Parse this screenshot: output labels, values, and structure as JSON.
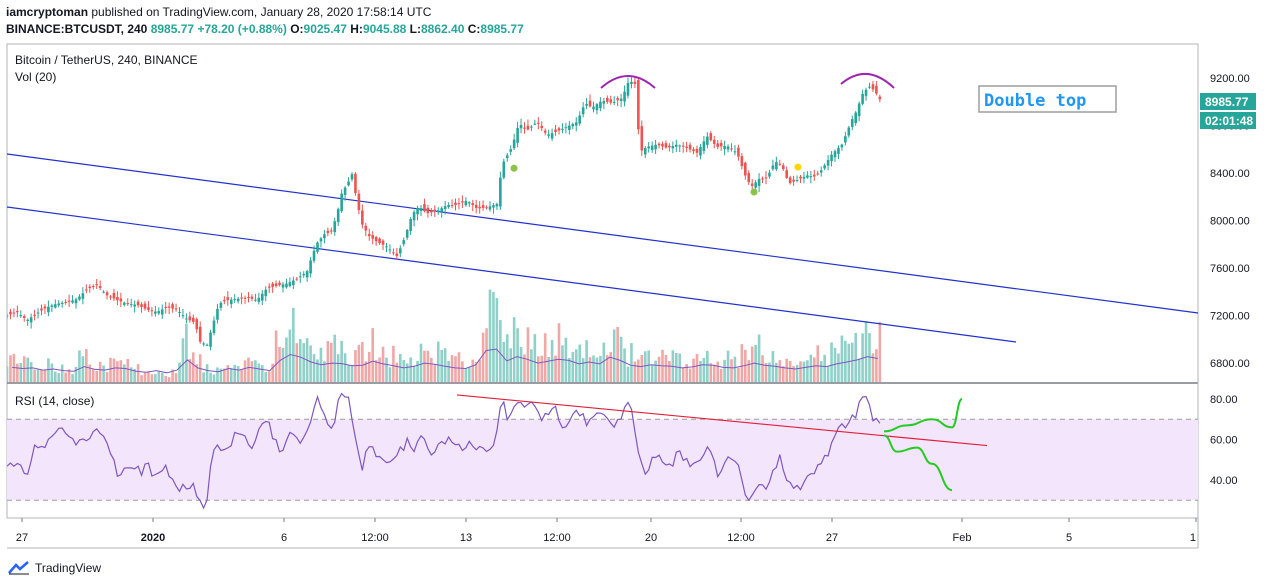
{
  "header": {
    "author": "iamcryptoman",
    "published_text": "published on TradingView.com, January 28, 2020 17:58:14 UTC",
    "symbol": "BINANCE:BTCUSDT, 240",
    "last": "8985.77",
    "change": "+78.20 (+0.88%)",
    "open_label": "O:",
    "open": "9025.47",
    "high_label": "H:",
    "high": "9045.88",
    "low_label": "L:",
    "low": "8862.40",
    "close_label": "C:",
    "close": "8985.77"
  },
  "legend": {
    "main": "Bitcoin / TetherUS, 240, BINANCE",
    "volume": "Vol (20)",
    "rsi": "RSI (14, close)"
  },
  "annotation": {
    "text": "Double top"
  },
  "price_tag": {
    "price": "8985.77",
    "countdown": "02:01:48"
  },
  "footer": {
    "brand": "TradingView"
  },
  "colors": {
    "up": "#26a69a",
    "down": "#ef5350",
    "channel": "#2233cc",
    "rsi_line": "#7e57c2",
    "rsi_band": "#f3e5fb",
    "trend_red": "#e0213a",
    "projection": "#22cc22",
    "double_top_arc": "#9c27b0",
    "annotation": "#2196f3"
  },
  "chart_data": [
    {
      "type": "candlestick",
      "series_name": "Bitcoin / TetherUS, 240, BINANCE",
      "y_axis": {
        "ticks": [
          "6800.00",
          "7200.00",
          "7600.00",
          "8000.00",
          "8400.00",
          "8800.00",
          "9200.00"
        ],
        "range": [
          6650,
          9450
        ]
      },
      "x_axis": {
        "ticks": [
          "27",
          "2020",
          "6",
          "12:00",
          "13",
          "12:00",
          "20",
          "12:00",
          "27",
          "Feb",
          "5",
          "1"
        ]
      },
      "close_path": [
        [
          0,
          7200
        ],
        [
          10,
          7230
        ],
        [
          20,
          7160
        ],
        [
          30,
          7220
        ],
        [
          40,
          7270
        ],
        [
          50,
          7300
        ],
        [
          60,
          7310
        ],
        [
          70,
          7340
        ],
        [
          80,
          7420
        ],
        [
          90,
          7460
        ],
        [
          100,
          7370
        ],
        [
          110,
          7330
        ],
        [
          120,
          7300
        ],
        [
          130,
          7290
        ],
        [
          140,
          7250
        ],
        [
          150,
          7230
        ],
        [
          160,
          7270
        ],
        [
          170,
          7250
        ],
        [
          180,
          7170
        ],
        [
          188,
          7140
        ],
        [
          193,
          6980
        ],
        [
          200,
          6950
        ],
        [
          205,
          7100
        ],
        [
          212,
          7300
        ],
        [
          220,
          7330
        ],
        [
          230,
          7340
        ],
        [
          240,
          7350
        ],
        [
          250,
          7330
        ],
        [
          260,
          7430
        ],
        [
          270,
          7450
        ],
        [
          280,
          7470
        ],
        [
          290,
          7510
        ],
        [
          300,
          7570
        ],
        [
          305,
          7700
        ],
        [
          310,
          7810
        ],
        [
          318,
          7890
        ],
        [
          324,
          7900
        ],
        [
          330,
          8050
        ],
        [
          335,
          8240
        ],
        [
          340,
          8300
        ],
        [
          345,
          8390
        ],
        [
          350,
          8160
        ],
        [
          355,
          7970
        ],
        [
          362,
          7870
        ],
        [
          370,
          7820
        ],
        [
          380,
          7780
        ],
        [
          390,
          7700
        ],
        [
          398,
          7860
        ],
        [
          405,
          8050
        ],
        [
          412,
          8120
        ],
        [
          420,
          8060
        ],
        [
          430,
          8080
        ],
        [
          440,
          8130
        ],
        [
          450,
          8130
        ],
        [
          460,
          8170
        ],
        [
          470,
          8100
        ],
        [
          480,
          8110
        ],
        [
          490,
          8140
        ],
        [
          495,
          8470
        ],
        [
          505,
          8620
        ],
        [
          512,
          8820
        ],
        [
          520,
          8760
        ],
        [
          530,
          8830
        ],
        [
          540,
          8720
        ],
        [
          550,
          8750
        ],
        [
          560,
          8790
        ],
        [
          570,
          8830
        ],
        [
          578,
          8990
        ],
        [
          585,
          8950
        ],
        [
          595,
          9010
        ],
        [
          605,
          8990
        ],
        [
          615,
          9030
        ],
        [
          622,
          9180
        ],
        [
          628,
          9150
        ],
        [
          633,
          8580
        ],
        [
          640,
          8620
        ],
        [
          650,
          8640
        ],
        [
          660,
          8610
        ],
        [
          670,
          8640
        ],
        [
          680,
          8610
        ],
        [
          690,
          8570
        ],
        [
          700,
          8710
        ],
        [
          710,
          8620
        ],
        [
          720,
          8630
        ],
        [
          730,
          8570
        ],
        [
          740,
          8340
        ],
        [
          745,
          8290
        ],
        [
          752,
          8350
        ],
        [
          760,
          8360
        ],
        [
          768,
          8500
        ],
        [
          775,
          8460
        ],
        [
          782,
          8310
        ],
        [
          790,
          8340
        ],
        [
          800,
          8380
        ],
        [
          808,
          8370
        ],
        [
          815,
          8430
        ],
        [
          825,
          8560
        ],
        [
          835,
          8640
        ],
        [
          845,
          8850
        ],
        [
          850,
          8930
        ],
        [
          855,
          9060
        ],
        [
          862,
          9130
        ],
        [
          868,
          9090
        ],
        [
          872,
          9030
        ],
        [
          876,
          8986
        ]
      ],
      "markers": [
        {
          "bar": 507,
          "price": 8440,
          "color": "#8bc34a"
        },
        {
          "bar": 747,
          "price": 8240,
          "color": "#8bc34a"
        },
        {
          "bar": 791,
          "price": 8450,
          "color": "#ffd600"
        }
      ]
    },
    {
      "type": "bar",
      "series_name": "Vol (20)",
      "relative_heights": [
        0.32,
        0.28,
        0.3,
        0.22,
        0.26,
        0.2,
        0.18,
        0.35,
        0.25,
        0.22,
        0.3,
        0.28,
        0.18,
        0.14,
        0.2,
        0.12,
        0.22,
        0.6,
        0.3,
        0.2,
        0.16,
        0.28,
        0.22,
        0.32,
        0.26,
        0.2,
        0.58,
        0.8,
        0.7,
        0.52,
        0.42,
        0.48,
        0.46,
        0.38,
        0.4,
        0.55,
        0.45,
        0.38,
        0.3,
        0.36,
        0.48,
        0.44,
        0.36,
        0.3,
        0.28,
        0.42,
        0.95,
        1.0,
        0.56,
        0.72,
        0.62,
        0.48,
        0.55,
        0.62,
        0.58,
        0.45,
        0.52,
        0.45,
        0.7,
        0.58,
        0.4,
        0.35,
        0.42,
        0.38,
        0.36,
        0.3,
        0.34,
        0.42,
        0.4,
        0.32,
        0.3,
        0.38,
        0.48,
        0.4,
        0.36,
        0.3,
        0.26,
        0.32,
        0.38,
        0.35,
        0.45,
        0.52,
        0.6,
        0.72,
        0.65
      ]
    },
    {
      "type": "line",
      "series_name": "RSI (14, close)",
      "y_axis": {
        "ticks": [
          "40.00",
          "60.00",
          "80.00"
        ],
        "range": [
          20,
          88
        ]
      },
      "band": [
        30,
        70
      ],
      "values_path": [
        [
          0,
          45
        ],
        [
          10,
          52
        ],
        [
          20,
          40
        ],
        [
          30,
          58
        ],
        [
          40,
          60
        ],
        [
          50,
          62
        ],
        [
          60,
          65
        ],
        [
          70,
          60
        ],
        [
          80,
          58
        ],
        [
          90,
          68
        ],
        [
          100,
          55
        ],
        [
          110,
          45
        ],
        [
          120,
          48
        ],
        [
          130,
          42
        ],
        [
          140,
          50
        ],
        [
          150,
          40
        ],
        [
          160,
          45
        ],
        [
          170,
          38
        ],
        [
          180,
          33
        ],
        [
          190,
          36
        ],
        [
          200,
          26
        ],
        [
          205,
          50
        ],
        [
          212,
          56
        ],
        [
          222,
          59
        ],
        [
          232,
          60
        ],
        [
          242,
          58
        ],
        [
          252,
          63
        ],
        [
          262,
          68
        ],
        [
          272,
          57
        ],
        [
          282,
          60
        ],
        [
          292,
          58
        ],
        [
          302,
          70
        ],
        [
          310,
          78
        ],
        [
          318,
          72
        ],
        [
          326,
          68
        ],
        [
          334,
          80
        ],
        [
          342,
          79
        ],
        [
          350,
          58
        ],
        [
          356,
          46
        ],
        [
          362,
          56
        ],
        [
          372,
          54
        ],
        [
          382,
          48
        ],
        [
          392,
          52
        ],
        [
          400,
          62
        ],
        [
          408,
          57
        ],
        [
          416,
          60
        ],
        [
          424,
          54
        ],
        [
          432,
          60
        ],
        [
          440,
          57
        ],
        [
          450,
          60
        ],
        [
          460,
          57
        ],
        [
          470,
          54
        ],
        [
          480,
          58
        ],
        [
          488,
          56
        ],
        [
          494,
          76
        ],
        [
          502,
          72
        ],
        [
          510,
          80
        ],
        [
          518,
          72
        ],
        [
          528,
          78
        ],
        [
          538,
          70
        ],
        [
          548,
          74
        ],
        [
          558,
          68
        ],
        [
          568,
          73
        ],
        [
          578,
          70
        ],
        [
          588,
          75
        ],
        [
          598,
          70
        ],
        [
          608,
          70
        ],
        [
          618,
          74
        ],
        [
          624,
          75
        ],
        [
          632,
          52
        ],
        [
          640,
          45
        ],
        [
          650,
          52
        ],
        [
          660,
          49
        ],
        [
          670,
          52
        ],
        [
          680,
          48
        ],
        [
          690,
          50
        ],
        [
          700,
          53
        ],
        [
          710,
          45
        ],
        [
          720,
          50
        ],
        [
          730,
          49
        ],
        [
          738,
          35
        ],
        [
          745,
          33
        ],
        [
          752,
          36
        ],
        [
          760,
          35
        ],
        [
          766,
          46
        ],
        [
          772,
          50
        ],
        [
          780,
          37
        ],
        [
          790,
          38
        ],
        [
          800,
          40
        ],
        [
          810,
          43
        ],
        [
          818,
          53
        ],
        [
          826,
          58
        ],
        [
          835,
          66
        ],
        [
          845,
          72
        ],
        [
          852,
          77
        ],
        [
          858,
          79
        ],
        [
          864,
          72
        ],
        [
          870,
          74
        ],
        [
          876,
          66
        ]
      ],
      "trendline": [
        [
          450,
          82
        ],
        [
          980,
          57
        ]
      ],
      "projection_up": [
        [
          877,
          64
        ],
        [
          900,
          67
        ],
        [
          925,
          70
        ],
        [
          945,
          66
        ],
        [
          955,
          80
        ]
      ],
      "projection_down": [
        [
          877,
          62
        ],
        [
          890,
          54
        ],
        [
          910,
          56
        ],
        [
          925,
          48
        ],
        [
          945,
          35
        ]
      ]
    }
  ]
}
